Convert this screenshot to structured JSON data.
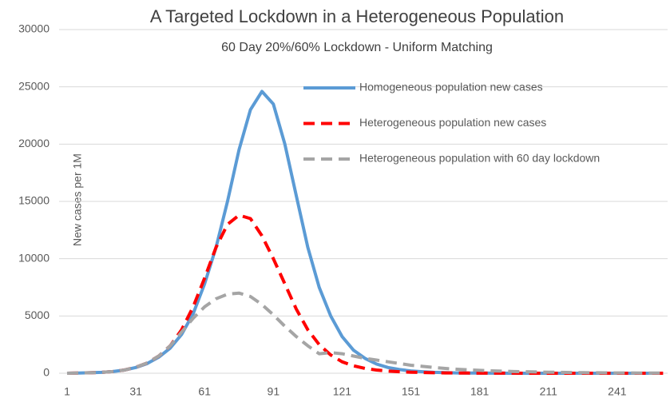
{
  "chart_data": {
    "type": "line",
    "title": "A Targeted Lockdown in a Heterogeneous Population",
    "subtitle": "60 Day 20%/60% Lockdown -  Uniform Matching",
    "y_label": "New cases per 1M",
    "x": [
      1,
      6,
      11,
      16,
      21,
      26,
      31,
      36,
      41,
      46,
      51,
      56,
      61,
      66,
      71,
      76,
      81,
      86,
      91,
      96,
      101,
      106,
      111,
      116,
      121,
      126,
      131,
      136,
      141,
      146,
      151,
      156,
      161,
      166,
      171,
      176,
      181,
      186,
      191,
      196,
      201,
      206,
      211,
      216,
      221,
      226,
      231,
      236,
      241,
      246,
      251,
      256,
      261
    ],
    "series": [
      {
        "name": "Homogeneous population new cases",
        "color": "#5b9bd5",
        "dash": "solid",
        "values": [
          0,
          20,
          40,
          80,
          150,
          280,
          500,
          850,
          1400,
          2200,
          3400,
          5200,
          7800,
          11000,
          15000,
          19500,
          23000,
          24600,
          23500,
          20000,
          15500,
          11000,
          7500,
          5000,
          3200,
          2000,
          1300,
          800,
          500,
          320,
          200,
          130,
          80,
          50,
          30,
          20,
          12,
          8,
          5,
          3,
          2,
          1,
          1,
          1,
          0,
          0,
          0,
          0,
          0,
          0,
          0,
          0,
          0
        ]
      },
      {
        "name": "Heterogeneous population new cases",
        "color": "#ff0000",
        "dash": "dashed",
        "values": [
          0,
          20,
          40,
          80,
          150,
          280,
          520,
          900,
          1500,
          2400,
          3800,
          5800,
          8300,
          11000,
          13000,
          13800,
          13500,
          12000,
          10000,
          7800,
          5600,
          3800,
          2500,
          1600,
          1000,
          650,
          420,
          280,
          190,
          130,
          90,
          60,
          40,
          28,
          20,
          14,
          10,
          7,
          5,
          4,
          3,
          2,
          2,
          1,
          1,
          1,
          1,
          0,
          0,
          0,
          0,
          0,
          0
        ]
      },
      {
        "name": "Heterogeneous population with 60 day lockdown",
        "color": "#a5a5a5",
        "dash": "dashed",
        "values": [
          0,
          20,
          40,
          80,
          150,
          280,
          520,
          900,
          1500,
          2400,
          3600,
          4800,
          5800,
          6500,
          6900,
          7000,
          6700,
          6000,
          5100,
          4100,
          3200,
          2400,
          1700,
          1800,
          1700,
          1500,
          1300,
          1150,
          1000,
          850,
          700,
          600,
          500,
          420,
          350,
          300,
          250,
          210,
          180,
          150,
          130,
          110,
          90,
          75,
          60,
          50,
          40,
          35,
          30,
          25,
          20,
          18,
          15
        ]
      }
    ],
    "xlim": [
      1,
      263
    ],
    "xticks": [
      1,
      31,
      61,
      91,
      121,
      151,
      181,
      211,
      241
    ],
    "ylim": [
      0,
      30000
    ],
    "yticks": [
      0,
      5000,
      10000,
      15000,
      20000,
      25000,
      30000
    ],
    "grid": true
  }
}
